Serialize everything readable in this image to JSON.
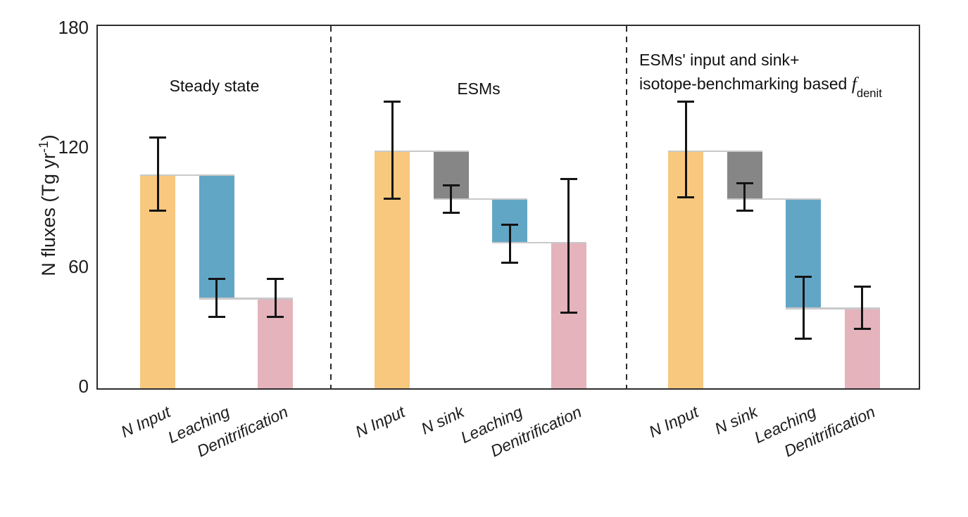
{
  "figure": {
    "background": "#ffffff"
  },
  "y_axis": {
    "label_prefix": "N fluxes (Tg yr",
    "label_sup": "-1",
    "label_suffix": ")",
    "ticks": [
      "0",
      "60",
      "120",
      "180"
    ]
  },
  "chart_data": {
    "type": "bar",
    "subtype": "waterfall-with-error-bars",
    "title": "",
    "ylabel": "N fluxes (Tg yr-1)",
    "ylim": [
      0,
      182
    ],
    "yticks": [
      0,
      60,
      120,
      180
    ],
    "grid": false,
    "legend": "none",
    "colors": {
      "input": "#f8c87e",
      "sink": "#868686",
      "leaching": "#62a6c6",
      "denit": "#e4b3bc",
      "connector": "#c9c9c9",
      "error": "#141414",
      "frame": "#2e2e2e"
    },
    "panels": [
      {
        "title": "Steady state",
        "bars": [
          {
            "label": "N Input",
            "color_key": "input",
            "base": 0,
            "top": 107,
            "err_lo": 89,
            "err_hi": 126
          },
          {
            "label": "Leaching",
            "color_key": "leaching",
            "base": 45,
            "top": 107,
            "err_lo": 36,
            "err_hi": 55
          },
          {
            "label": "Denitrification",
            "color_key": "denit",
            "base": 0,
            "top": 45,
            "err_lo": 36,
            "err_hi": 55
          }
        ]
      },
      {
        "title": "ESMs",
        "bars": [
          {
            "label": "N Input",
            "color_key": "input",
            "base": 0,
            "top": 119,
            "err_lo": 95,
            "err_hi": 144
          },
          {
            "label": "N sink",
            "color_key": "sink",
            "base": 95,
            "top": 119,
            "err_lo": 88,
            "err_hi": 102
          },
          {
            "label": "Leaching",
            "color_key": "leaching",
            "base": 73,
            "top": 95,
            "err_lo": 63,
            "err_hi": 82
          },
          {
            "label": "Denitrification",
            "color_key": "denit",
            "base": 0,
            "top": 73,
            "err_lo": 38,
            "err_hi": 105
          }
        ]
      },
      {
        "title_lines": {
          "line1": "ESMs' input and sink+",
          "line2_prefix": "isotope-benchmarking based ",
          "line2_italic": "f",
          "line2_sub": "denit"
        },
        "bars": [
          {
            "label": "N Input",
            "color_key": "input",
            "base": 0,
            "top": 119,
            "err_lo": 96,
            "err_hi": 144
          },
          {
            "label": "N sink",
            "color_key": "sink",
            "base": 95,
            "top": 119,
            "err_lo": 89,
            "err_hi": 103
          },
          {
            "label": "Leaching",
            "color_key": "leaching",
            "base": 40,
            "top": 95,
            "err_lo": 25,
            "err_hi": 56
          },
          {
            "label": "Denitrification",
            "color_key": "denit",
            "base": 0,
            "top": 40,
            "err_lo": 30,
            "err_hi": 51
          }
        ]
      }
    ]
  }
}
